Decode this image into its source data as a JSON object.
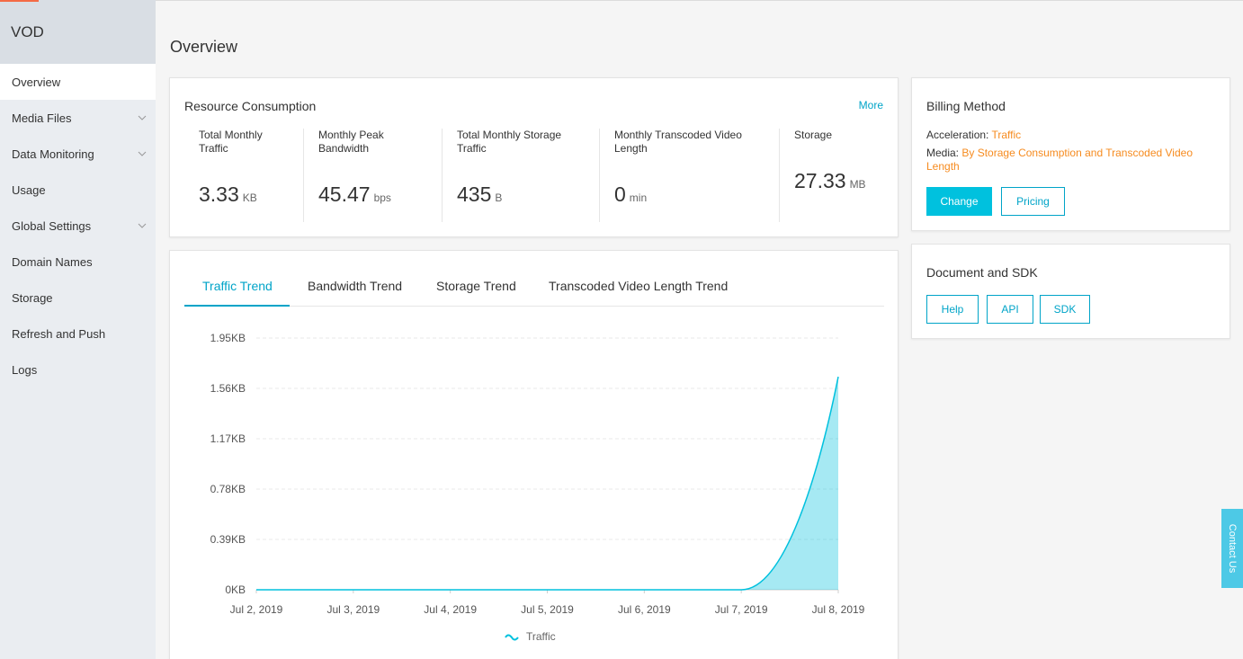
{
  "sidebar": {
    "title": "VOD",
    "items": [
      {
        "label": "Overview",
        "active": true,
        "expandable": false
      },
      {
        "label": "Media Files",
        "expandable": true
      },
      {
        "label": "Data Monitoring",
        "expandable": true
      },
      {
        "label": "Usage",
        "expandable": false
      },
      {
        "label": "Global Settings",
        "expandable": true
      },
      {
        "label": "Domain Names",
        "expandable": false
      },
      {
        "label": "Storage",
        "expandable": false
      },
      {
        "label": "Refresh and Push",
        "expandable": false
      },
      {
        "label": "Logs",
        "expandable": false
      }
    ]
  },
  "page": {
    "title": "Overview"
  },
  "resource": {
    "title": "Resource Consumption",
    "more": "More",
    "metrics": [
      {
        "label_lines": [
          "Total Monthly",
          "Traffic"
        ],
        "value": "3.33",
        "unit": "KB"
      },
      {
        "label_lines": [
          "Monthly Peak",
          "Bandwidth"
        ],
        "value": "45.47",
        "unit": "bps"
      },
      {
        "label_lines": [
          "Total Monthly Storage",
          "Traffic"
        ],
        "value": "435",
        "unit": "B"
      },
      {
        "label_lines": [
          "Monthly Transcoded Video",
          "Length"
        ],
        "value": "0",
        "unit": "min"
      },
      {
        "label_lines": [
          "Storage"
        ],
        "value": "27.33",
        "unit": "MB"
      }
    ]
  },
  "trend": {
    "tabs": [
      "Traffic Trend",
      "Bandwidth Trend",
      "Storage Trend",
      "Transcoded Video Length Trend"
    ],
    "active_tab": 0
  },
  "chart_data": {
    "type": "area",
    "x": [
      "Jul 2, 2019",
      "Jul 3, 2019",
      "Jul 4, 2019",
      "Jul 5, 2019",
      "Jul 6, 2019",
      "Jul 7, 2019",
      "Jul 8, 2019"
    ],
    "y_ticks": [
      "0KB",
      "0.39KB",
      "0.78KB",
      "1.17KB",
      "1.56KB",
      "1.95KB"
    ],
    "ylim": [
      0,
      1.95
    ],
    "series": [
      {
        "name": "Traffic",
        "values": [
          0,
          0,
          0,
          0,
          0,
          0,
          1.65
        ],
        "color": "#00c1de"
      }
    ],
    "legend": "bottom-center",
    "grid": true
  },
  "billing": {
    "title": "Billing Method",
    "acceleration_label": "Acceleration:",
    "acceleration_value": "Traffic",
    "media_label": "Media:",
    "media_value_line1": "By Storage Consumption and Transcoded Video",
    "media_value_line2": "Length",
    "change": "Change",
    "pricing": "Pricing"
  },
  "docs": {
    "title": "Document and SDK",
    "buttons": [
      "Help",
      "API",
      "SDK"
    ]
  },
  "contact": "Contact Us",
  "colors": {
    "accent": "#00c1de",
    "link": "#00a4c8",
    "orange": "#f68b1f",
    "sidebar": "#eaedf1"
  }
}
